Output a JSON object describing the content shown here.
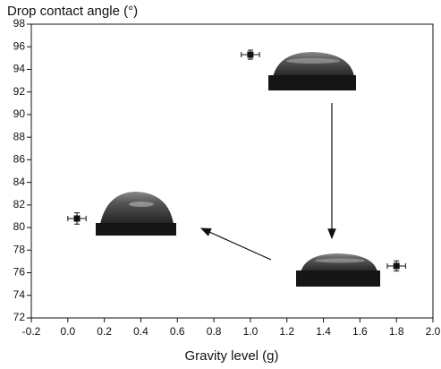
{
  "chart_data": {
    "type": "scatter",
    "y_label": "Drop contact angle (°)",
    "x_label": "Gravity level (g)",
    "xlim": [
      -0.2,
      2.0
    ],
    "xticks": [
      -0.2,
      {
        "value": 0,
        "label": "0.0"
      },
      0.2,
      0.4,
      0.6,
      0.8,
      {
        "value": 1,
        "label": "1.0"
      },
      1.2,
      1.4,
      1.6,
      1.8,
      {
        "value": 2,
        "label": "2.0"
      }
    ],
    "ylim": [
      72,
      98
    ],
    "yticks": [
      72,
      74,
      76,
      78,
      80,
      82,
      84,
      86,
      88,
      90,
      92,
      94,
      96,
      98
    ],
    "color": "#111111",
    "series": [
      {
        "x": [
          0.05,
          1.0,
          1.8
        ],
        "x_err": [
          0.05,
          0.05,
          0.05
        ],
        "y": [
          80.8,
          95.3,
          76.6
        ],
        "y_err": [
          0.5,
          0.4,
          0.45
        ]
      }
    ]
  }
}
